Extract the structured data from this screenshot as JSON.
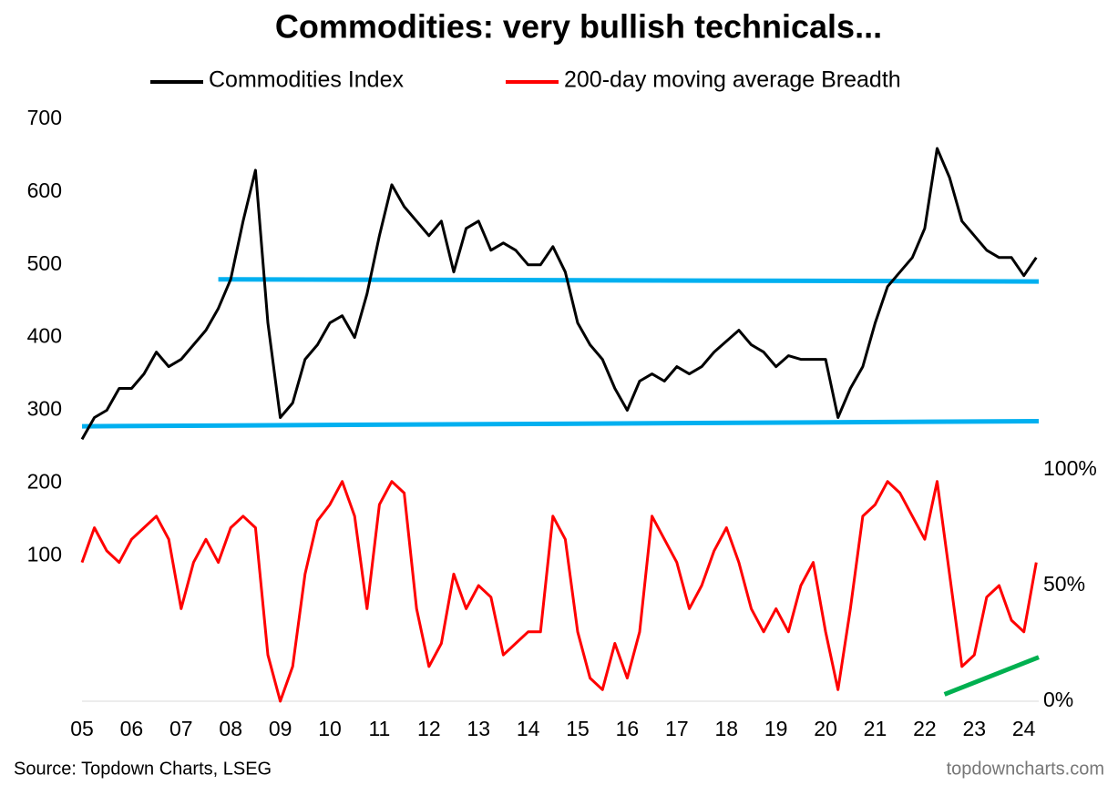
{
  "chart_data": {
    "type": "line",
    "title": "Commodities: very bullish technicals...",
    "source": "Source: Topdown Charts, LSEG",
    "watermark": "topdowncharts.com",
    "x": [
      2005,
      2005.25,
      2005.5,
      2005.75,
      2006,
      2006.25,
      2006.5,
      2006.75,
      2007,
      2007.25,
      2007.5,
      2007.75,
      2008,
      2008.25,
      2008.5,
      2008.75,
      2009,
      2009.25,
      2009.5,
      2009.75,
      2010,
      2010.25,
      2010.5,
      2010.75,
      2011,
      2011.25,
      2011.5,
      2011.75,
      2012,
      2012.25,
      2012.5,
      2012.75,
      2013,
      2013.25,
      2013.5,
      2013.75,
      2014,
      2014.25,
      2014.5,
      2014.75,
      2015,
      2015.25,
      2015.5,
      2015.75,
      2016,
      2016.25,
      2016.5,
      2016.75,
      2017,
      2017.25,
      2017.5,
      2017.75,
      2018,
      2018.25,
      2018.5,
      2018.75,
      2019,
      2019.25,
      2019.5,
      2019.75,
      2020,
      2020.25,
      2020.5,
      2020.75,
      2021,
      2021.25,
      2021.5,
      2021.75,
      2022,
      2022.25,
      2022.5,
      2022.75,
      2023,
      2023.25,
      2023.5,
      2023.75,
      2024,
      2024.25
    ],
    "series": [
      {
        "name": "Commodities Index",
        "color": "#000000",
        "values": [
          260,
          290,
          300,
          330,
          330,
          350,
          380,
          360,
          370,
          390,
          410,
          440,
          480,
          560,
          630,
          420,
          290,
          310,
          370,
          390,
          420,
          430,
          400,
          460,
          540,
          610,
          580,
          560,
          540,
          560,
          490,
          550,
          560,
          520,
          530,
          520,
          500,
          500,
          525,
          490,
          420,
          390,
          370,
          330,
          300,
          340,
          350,
          340,
          360,
          350,
          360,
          380,
          395,
          410,
          390,
          380,
          360,
          375,
          370,
          370,
          370,
          290,
          330,
          360,
          420,
          470,
          490,
          510,
          550,
          660,
          620,
          560,
          540,
          520,
          510,
          510,
          485,
          510
        ]
      },
      {
        "name": "200-day moving average Breadth",
        "color": "#ff0000",
        "axis": "y2",
        "values": [
          60,
          75,
          65,
          60,
          70,
          75,
          80,
          70,
          40,
          60,
          70,
          60,
          75,
          80,
          75,
          20,
          0,
          15,
          55,
          78,
          85,
          95,
          80,
          40,
          85,
          95,
          90,
          40,
          15,
          25,
          55,
          40,
          50,
          45,
          20,
          25,
          30,
          30,
          80,
          70,
          30,
          10,
          5,
          25,
          10,
          30,
          80,
          70,
          60,
          40,
          50,
          65,
          75,
          60,
          40,
          30,
          40,
          30,
          50,
          60,
          30,
          5,
          40,
          80,
          85,
          95,
          90,
          80,
          70,
          95,
          55,
          15,
          20,
          45,
          50,
          35,
          30,
          60
        ]
      }
    ],
    "reference_lines": [
      {
        "color": "#00b0f0",
        "x": [
          2007.75,
          2024.3
        ],
        "values": [
          480,
          477
        ]
      },
      {
        "color": "#00b0f0",
        "x": [
          2005,
          2024.3
        ],
        "values": [
          278,
          285
        ]
      },
      {
        "color": "#00b050",
        "axis": "y2",
        "x": [
          2022.4,
          2024.3
        ],
        "values": [
          3,
          19
        ]
      }
    ],
    "xlim": [
      2005,
      2024.3
    ],
    "xticks": [
      {
        "value": 2005,
        "label": "05"
      },
      {
        "value": 2006,
        "label": "06"
      },
      {
        "value": 2007,
        "label": "07"
      },
      {
        "value": 2008,
        "label": "08"
      },
      {
        "value": 2009,
        "label": "09"
      },
      {
        "value": 2010,
        "label": "10"
      },
      {
        "value": 2011,
        "label": "11"
      },
      {
        "value": 2012,
        "label": "12"
      },
      {
        "value": 2013,
        "label": "13"
      },
      {
        "value": 2014,
        "label": "14"
      },
      {
        "value": 2015,
        "label": "15"
      },
      {
        "value": 2016,
        "label": "16"
      },
      {
        "value": 2017,
        "label": "17"
      },
      {
        "value": 2018,
        "label": "18"
      },
      {
        "value": 2019,
        "label": "19"
      },
      {
        "value": 2020,
        "label": "20"
      },
      {
        "value": 2021,
        "label": "21"
      },
      {
        "value": 2022,
        "label": "22"
      },
      {
        "value": 2023,
        "label": "23"
      },
      {
        "value": 2024,
        "label": "24"
      }
    ],
    "ylim": [
      -100,
      700
    ],
    "yticks": [
      100,
      200,
      300,
      400,
      500,
      600,
      700
    ],
    "y2lim": [
      0,
      251.6
    ],
    "y2ticks": [
      {
        "value": 0,
        "label": "0%"
      },
      {
        "value": 50,
        "label": "50%"
      },
      {
        "value": 100,
        "label": "100%"
      }
    ],
    "grid": false
  }
}
